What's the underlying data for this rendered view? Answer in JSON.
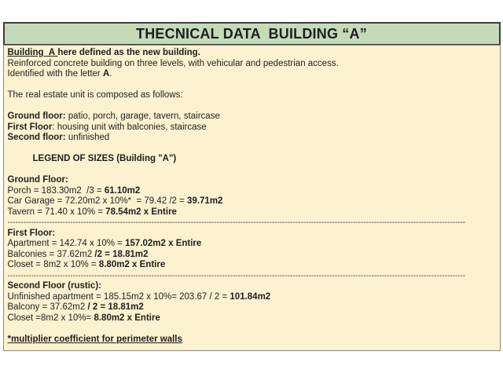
{
  "page": {
    "background": "#ffffff"
  },
  "header": {
    "title": "THECNICAL DATA  BUILDING “A”",
    "fill": "#c4dbb8",
    "border_color": "#3d3d3d"
  },
  "body": {
    "fill": "#fcf2d0",
    "border_color": "#8a8a7e",
    "separator": "------------------------------------------------------------------------------------------------------------------------------------------------------------------------------------------------------------",
    "lines": [
      {
        "t": "text",
        "runs": [
          {
            "x": "Building  A ",
            "b": 1,
            "u": 1
          },
          {
            "x": "here defined as the new building.",
            "b": 1
          }
        ]
      },
      {
        "t": "text",
        "runs": [
          {
            "x": "Reinforced concrete building on three levels, with vehicular and pedestrian access."
          }
        ]
      },
      {
        "t": "text",
        "runs": [
          {
            "x": "Identified with the letter "
          },
          {
            "x": "A",
            "b": 1
          },
          {
            "x": "."
          }
        ]
      },
      {
        "t": "blank"
      },
      {
        "t": "text",
        "runs": [
          {
            "x": "The real estate unit is composed as follows:"
          }
        ]
      },
      {
        "t": "blank"
      },
      {
        "t": "text",
        "runs": [
          {
            "x": "Ground floor:",
            "b": 1
          },
          {
            "x": " patio, porch, garage, tavern, staircase"
          }
        ]
      },
      {
        "t": "text",
        "runs": [
          {
            "x": "First Floor",
            "b": 1
          },
          {
            "x": ": housing unit with balconies, staircase"
          }
        ]
      },
      {
        "t": "text",
        "runs": [
          {
            "x": "Second floor:",
            "b": 1
          },
          {
            "x": " unfinished"
          }
        ]
      },
      {
        "t": "blank"
      },
      {
        "t": "text",
        "ind": 32,
        "runs": [
          {
            "x": "LEGEND OF SIZES (Building \"A\")",
            "b": 1
          }
        ]
      },
      {
        "t": "blank"
      },
      {
        "t": "text",
        "runs": [
          {
            "x": "Ground Floor:",
            "b": 1
          }
        ]
      },
      {
        "t": "text",
        "runs": [
          {
            "x": "Porch = 183.30m2  /3 = "
          },
          {
            "x": "61.10m2",
            "b": 1
          }
        ]
      },
      {
        "t": "text",
        "runs": [
          {
            "x": "Car Garage = 72.20m2 x 10%*  = 79.42 /2 = "
          },
          {
            "x": "39.71m2",
            "b": 1
          }
        ]
      },
      {
        "t": "text",
        "runs": [
          {
            "x": "Tavern = 71.40 x 10% = "
          },
          {
            "x": "78.54m2 x Entire",
            "b": 1
          }
        ]
      },
      {
        "t": "sep"
      },
      {
        "t": "text",
        "runs": [
          {
            "x": "First Floor:",
            "b": 1
          }
        ]
      },
      {
        "t": "text",
        "runs": [
          {
            "x": "Apartment = 142.74 x 10% = "
          },
          {
            "x": "157.02m2 x Entire",
            "b": 1
          }
        ]
      },
      {
        "t": "text",
        "runs": [
          {
            "x": "Balconies = 37.62m2 "
          },
          {
            "x": "/2 = 18.81m2",
            "b": 1
          }
        ]
      },
      {
        "t": "text",
        "runs": [
          {
            "x": "Closet = 8m2 x 10% = "
          },
          {
            "x": "8.80m2 x Entire",
            "b": 1
          }
        ]
      },
      {
        "t": "sep"
      },
      {
        "t": "text",
        "runs": [
          {
            "x": "Second Floor (rustic):",
            "b": 1
          }
        ]
      },
      {
        "t": "text",
        "runs": [
          {
            "x": "Unfinished apartment = 185.15m2 x 10%= 203.67 / 2 = "
          },
          {
            "x": "101.84m2",
            "b": 1
          }
        ]
      },
      {
        "t": "text",
        "runs": [
          {
            "x": "Balcony = 37.62m2 "
          },
          {
            "x": "/ 2 = 18.81m2",
            "b": 1
          }
        ]
      },
      {
        "t": "text",
        "runs": [
          {
            "x": "Closet =8m2 x 10%= "
          },
          {
            "x": "8.80m2 x Entire",
            "b": 1
          }
        ]
      },
      {
        "t": "blank"
      },
      {
        "t": "text",
        "runs": [
          {
            "x": "*multiplier coefficient for perimeter walls",
            "b": 1,
            "u": 1
          }
        ]
      }
    ]
  }
}
